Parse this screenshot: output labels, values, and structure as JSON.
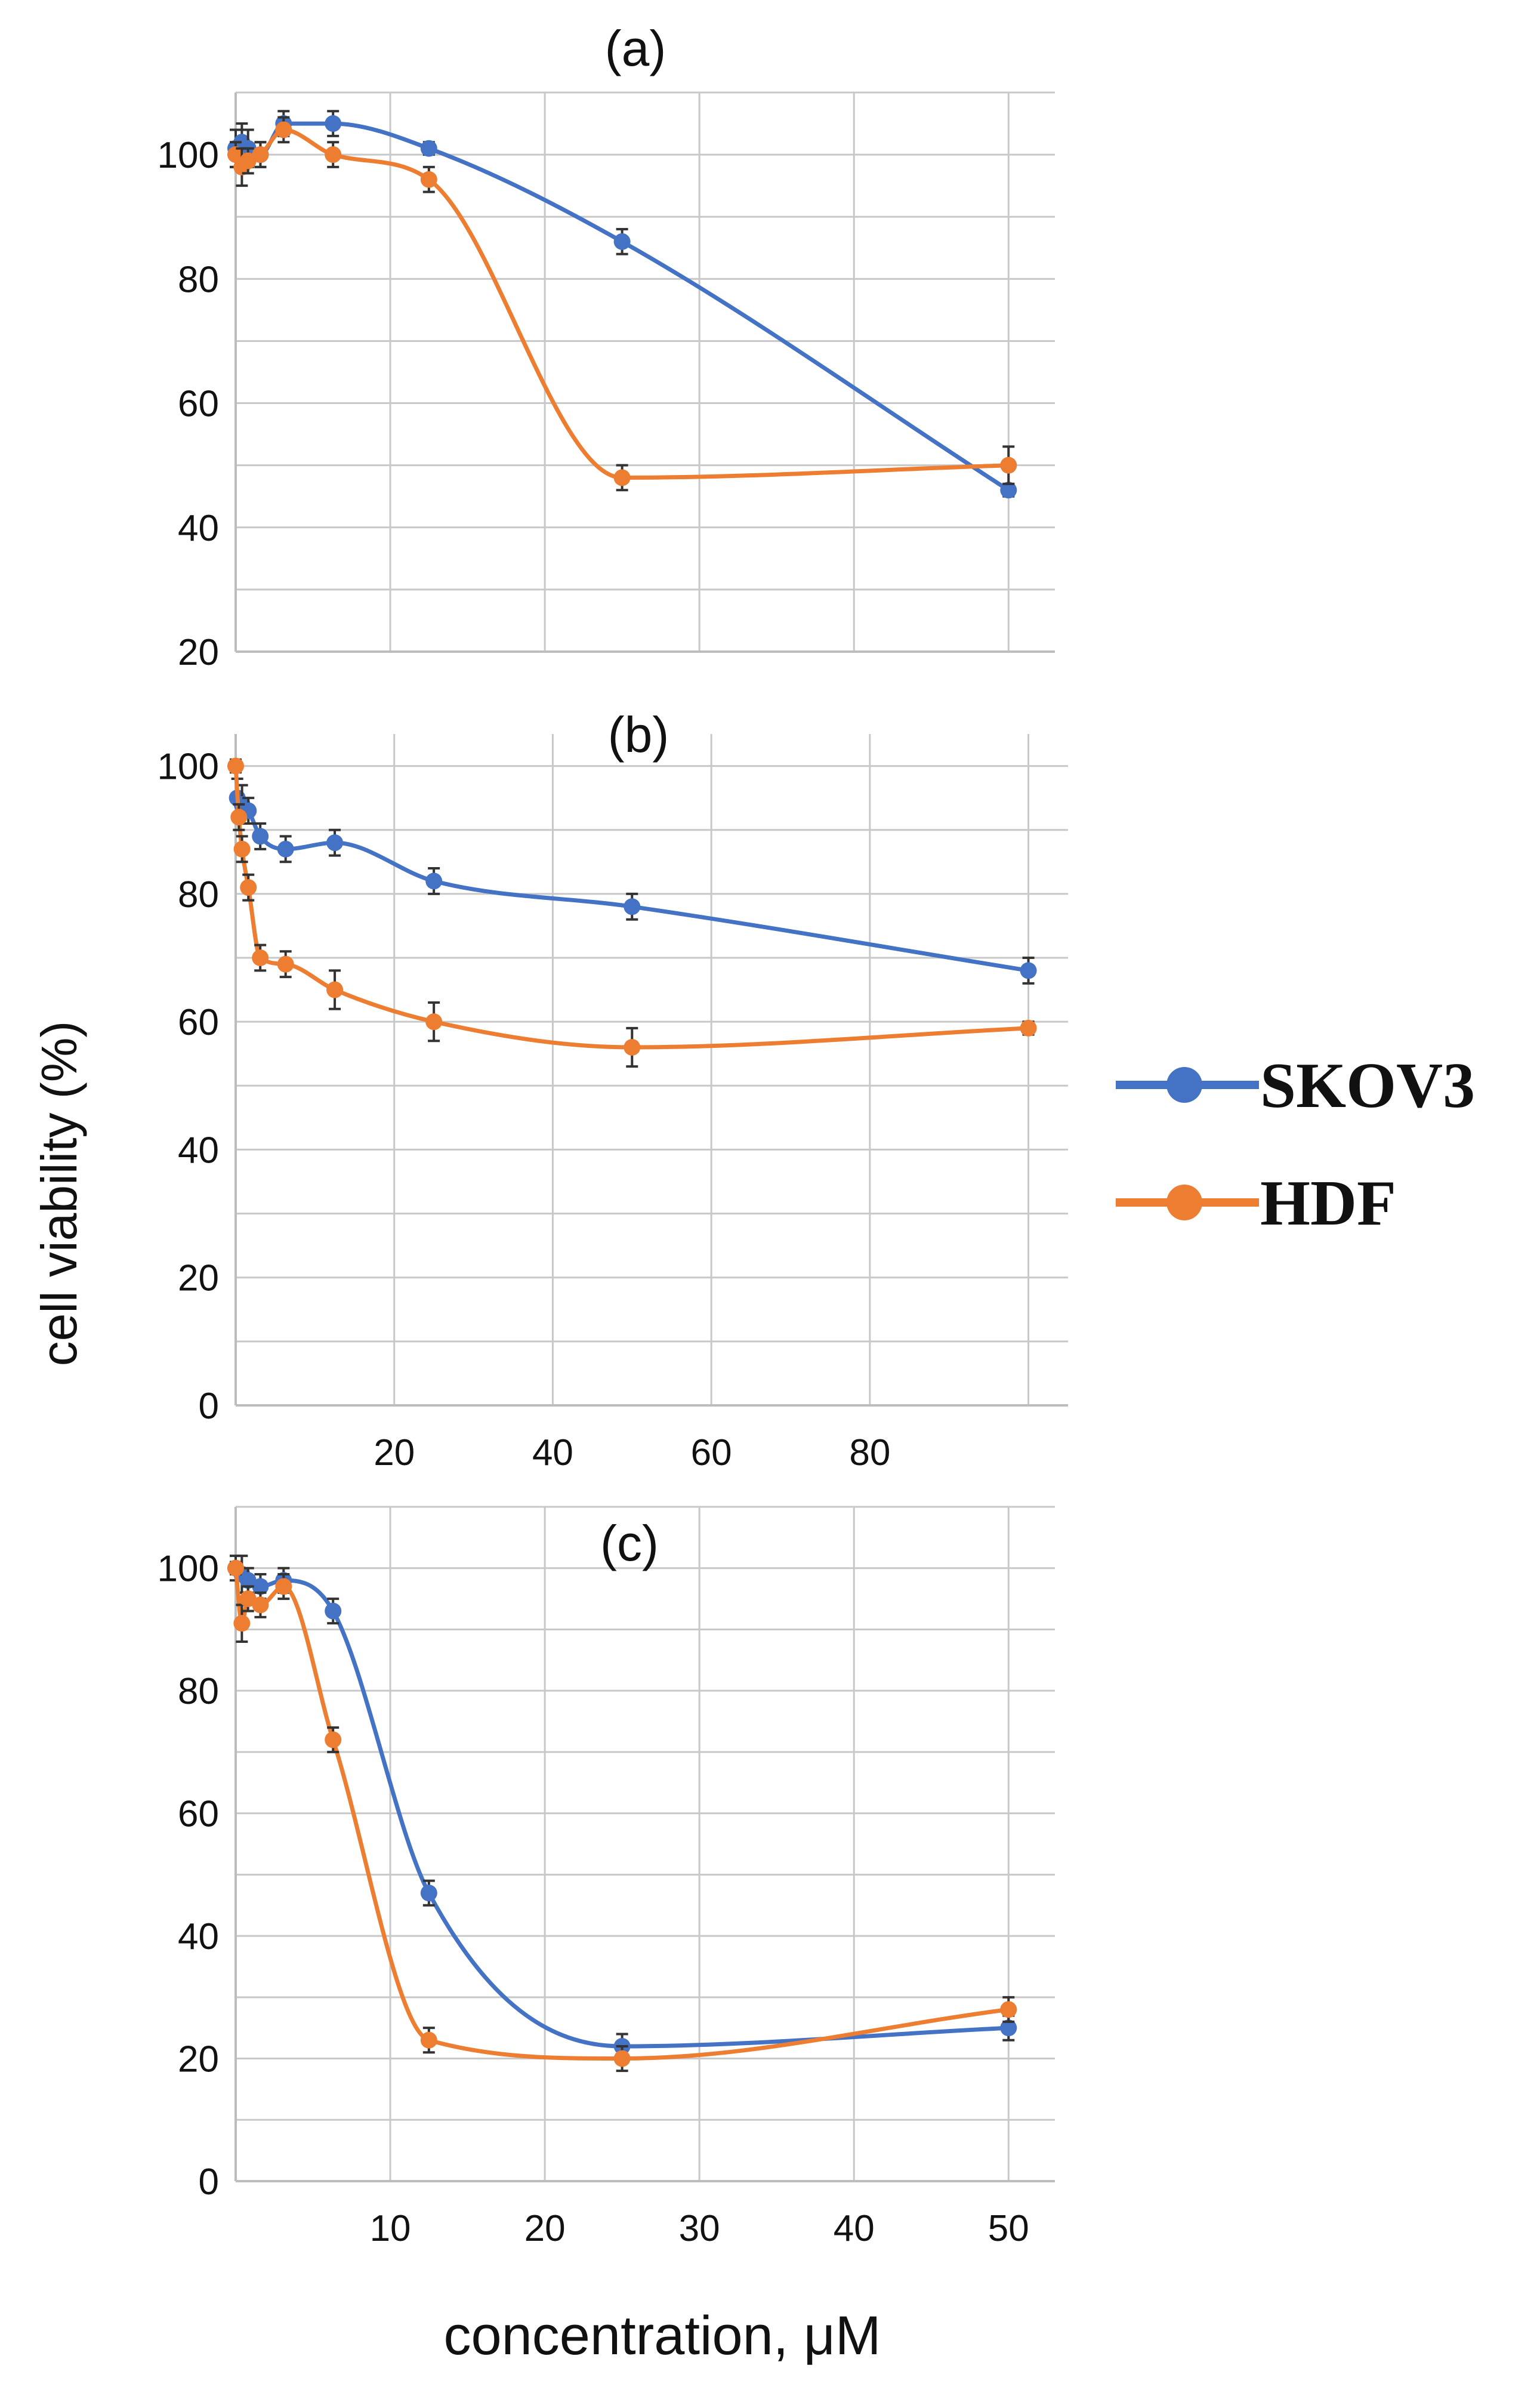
{
  "figure": {
    "ylabel": "cell viability (%)",
    "xlabel": "concentration, μM"
  },
  "legend": [
    {
      "name": "SKOV3",
      "color": "#4472c4"
    },
    {
      "name": "HDF",
      "color": "#ed7d31"
    }
  ],
  "chart_data": [
    {
      "type": "line",
      "title": "(a)",
      "xlabel": "",
      "ylabel": "cell viability (%)",
      "xlim": [
        0,
        53
      ],
      "ylim": [
        20,
        110
      ],
      "yticks": [
        20,
        40,
        60,
        80,
        100
      ],
      "xtick_labels_shown": false,
      "grid": true,
      "series": [
        {
          "name": "SKOV3",
          "color": "#4472c4",
          "x": [
            0,
            0.4,
            0.8,
            1.6,
            3.1,
            6.3,
            12.5,
            25,
            50
          ],
          "y": [
            101,
            102,
            101,
            100,
            105,
            105,
            101,
            86,
            46
          ],
          "err": [
            3,
            3,
            3,
            2,
            2,
            2,
            1,
            2,
            1
          ]
        },
        {
          "name": "HDF",
          "color": "#ed7d31",
          "x": [
            0,
            0.4,
            0.8,
            1.6,
            3.1,
            6.3,
            12.5,
            25,
            50
          ],
          "y": [
            100,
            98,
            99,
            100,
            104,
            100,
            96,
            48,
            50
          ],
          "err": [
            2,
            3,
            2,
            2,
            2,
            2,
            2,
            2,
            3
          ]
        }
      ]
    },
    {
      "type": "line",
      "title": "(b)",
      "xlabel": "",
      "ylabel": "cell viability (%)",
      "xlim": [
        0,
        105
      ],
      "ylim": [
        0,
        105
      ],
      "yticks": [
        0,
        20,
        40,
        60,
        80,
        100
      ],
      "xticks": [
        20,
        40,
        60,
        80
      ],
      "grid": true,
      "series": [
        {
          "name": "SKOV3",
          "color": "#4472c4",
          "x": [
            0.2,
            0.8,
            1.6,
            3.1,
            6.3,
            12.5,
            25,
            50,
            100
          ],
          "y": [
            95,
            94,
            93,
            89,
            87,
            88,
            82,
            78,
            68
          ],
          "err": [
            3,
            3,
            2,
            2,
            2,
            2,
            2,
            2,
            2
          ]
        },
        {
          "name": "HDF",
          "color": "#ed7d31",
          "x": [
            0,
            0.4,
            0.8,
            1.6,
            3.1,
            6.3,
            12.5,
            25,
            50,
            100
          ],
          "y": [
            100,
            92,
            87,
            81,
            70,
            69,
            65,
            60,
            56,
            59
          ],
          "err": [
            1,
            2,
            2,
            2,
            2,
            2,
            3,
            3,
            3,
            1
          ]
        }
      ]
    },
    {
      "type": "line",
      "title": "(c)",
      "xlabel": "concentration, μM",
      "ylabel": "cell viability (%)",
      "xlim": [
        0,
        53
      ],
      "ylim": [
        0,
        110
      ],
      "yticks": [
        0,
        20,
        40,
        60,
        80,
        100
      ],
      "xticks": [
        10,
        20,
        30,
        40,
        50
      ],
      "grid": true,
      "series": [
        {
          "name": "SKOV3",
          "color": "#4472c4",
          "x": [
            0,
            0.4,
            0.8,
            1.6,
            3.1,
            6.3,
            12.5,
            25,
            50
          ],
          "y": [
            100,
            99,
            98,
            97,
            98,
            93,
            47,
            22,
            25
          ],
          "err": [
            2,
            3,
            2,
            2,
            2,
            2,
            2,
            2,
            2
          ]
        },
        {
          "name": "HDF",
          "color": "#ed7d31",
          "x": [
            0,
            0.4,
            0.8,
            1.6,
            3.1,
            6.3,
            12.5,
            25,
            50
          ],
          "y": [
            100,
            91,
            95,
            94,
            97,
            72,
            23,
            20,
            28
          ],
          "err": [
            1,
            3,
            2,
            2,
            2,
            2,
            2,
            2,
            2
          ]
        }
      ]
    }
  ]
}
